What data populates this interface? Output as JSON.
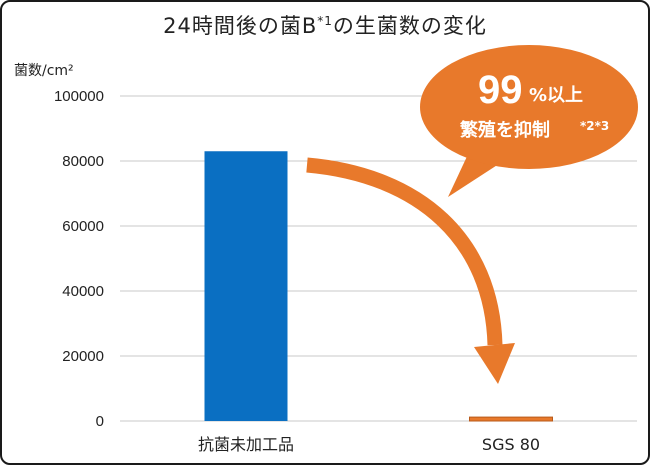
{
  "chart_data": {
    "type": "bar",
    "title_main": "24時間後の菌B",
    "title_sup": "*1",
    "title_tail": "の生菌数の変化",
    "ylabel": "菌数/cm²",
    "categories": [
      "抗菌未加工品",
      "SGS 80"
    ],
    "values": [
      83000,
      1200
    ],
    "ylim": [
      0,
      100000
    ],
    "yticks": [
      "100000",
      "80000",
      "60000",
      "40000",
      "20000",
      "0"
    ],
    "ytick_values": [
      100000,
      80000,
      60000,
      40000,
      20000,
      0
    ],
    "bar_colors": [
      "#0a6fc2",
      "#e8792b"
    ],
    "grid": true
  },
  "callout": {
    "big_number": "99",
    "percent_text": "%以上",
    "line2": "繁殖を抑制",
    "footnote": "*2*3",
    "color": "#e8792b"
  }
}
